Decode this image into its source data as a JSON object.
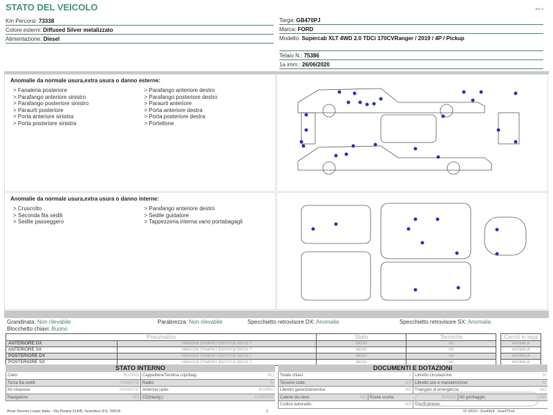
{
  "title": "STATO DEL VEICOLO",
  "rev": "Rev. A",
  "left_info": [
    {
      "label": "Km Percorsi: ",
      "value": "73338"
    },
    {
      "label": "Colore esterni: ",
      "value": "Diffused Silver metalizzato"
    },
    {
      "label": "Alimentazione: ",
      "value": "Diesel"
    }
  ],
  "right_info": [
    {
      "label": "Targa: ",
      "value": "GB470PJ"
    },
    {
      "label": "Marca: ",
      "value": "FORD"
    },
    {
      "label": "Modello: ",
      "value": "Supercab XLT 4WD 2.0 TDCi 170CVRanger / 2019 / 4P / Pickup"
    },
    {
      "label": "Telaio N.: ",
      "value": "75386"
    },
    {
      "label": "1a imm.: ",
      "value": "26/06/2020"
    }
  ],
  "exterior": {
    "title": "Anomalie da normale usura,extra usura o danno esterne:",
    "col1": [
      "> Fanaleria posteriore",
      "> Parafango anteriore sinistro",
      "> Parafango posteriore sinistro",
      "> Paraurti posteriore",
      "> Porta anteriore sinistra",
      "> Porta posteriore sinistra"
    ],
    "col2": [
      "> Parafango anteriore destro",
      "> Parafango posteriore destro",
      "> Paraurti anteriore",
      "> Porta anteriore destra",
      "> Porta posteriore destra",
      "> Portellone"
    ]
  },
  "interior": {
    "title": "Anomalie da normale usura,extra usura o danno interne:",
    "col1": [
      "> Cruscotto",
      "> Seconda fila sedili",
      "> Sedile passeggero"
    ],
    "col2": [
      "> Parafango anteriore destro",
      "> Sedile guidatore",
      "> Tappezzeria interna vano portabagagli"
    ]
  },
  "status": [
    {
      "label": "Grandinata: ",
      "value": "Non rilevabile"
    },
    {
      "label": "Parabrezza: ",
      "value": "Non rilevabile"
    },
    {
      "label": "Specchietto retrovisore DX: ",
      "value": "Anomalia"
    },
    {
      "label": "Specchietto retrovisore SX: ",
      "value": "Anomalia"
    },
    {
      "label": "Blocchetto chiavi: ",
      "value": "Buono"
    }
  ],
  "tires": {
    "headers": [
      "Pneumatico",
      "Stato",
      "Termiche",
      "Cerchi in lega"
    ],
    "rows": [
      {
        "pos": "ANTERIORE DX",
        "tyre": "HANKOOK DYNAPRO 255/70 R16 000/111 T",
        "stato": "MEDIO",
        "termiche": "NO",
        "cerchi": "ANOMALIA"
      },
      {
        "pos": "ANTERIORE SX",
        "tyre": "HANKOOK DYNAPRO 255/70 R16 000/111 T",
        "stato": "MEDIO",
        "termiche": "NO",
        "cerchi": "ANOMALIA"
      },
      {
        "pos": "POSTERIORE DX",
        "tyre": "HANKOOK DYNAPRO 255/70 R16 000/111 T",
        "stato": "MEDIO",
        "termiche": "NO",
        "cerchi": "ANOMALIA"
      },
      {
        "pos": "POSTERIORE SX",
        "tyre": "HANKOOK DYNAPRO 255/70 R16 000/111 T",
        "stato": "MEDIO",
        "termiche": "NO",
        "cerchi": "ANOMALIA"
      }
    ]
  },
  "stato_interno": {
    "title": "STATO INTERNO",
    "rows": [
      [
        [
          "Cielo:",
          "BUONO"
        ],
        [
          "Cappelliera/Tendina copribag:",
          "NO"
        ]
      ],
      [
        [
          "Terza fila sedili:",
          "ASSENTE"
        ],
        [
          "Radio:",
          "SI"
        ]
      ],
      [
        [
          "Kit vivavoce:",
          "ASSENTE"
        ],
        [
          "Antenna radio:",
          "BUONO"
        ]
      ],
      [
        [
          "Navigatore:",
          "NO"
        ],
        [
          "CD(Navig.):",
          "ASSENTE"
        ]
      ]
    ]
  },
  "documenti": {
    "title": "DOCUMENTI E DOTAZIONI",
    "rows": [
      [
        [
          "Totale chiavi:",
          "2"
        ],
        [
          "Libretto circolazione:",
          "SI"
        ]
      ],
      [
        [
          "Tessere code:",
          "NO"
        ],
        [
          "Libretto uso e manutenzione:",
          "SI"
        ]
      ],
      [
        [
          "Libretto garanzia/service:",
          "NO"
        ],
        [
          "Triangolo di emergenza:",
          "NO"
        ]
      ],
      [
        [
          "Catene da neve:",
          "NO"
        ],
        [
          "Ruota scorta:",
          "BUONA"
        ],
        [
          "Kit gonfiaggio:",
          "NO"
        ]
      ],
      [
        [
          "Codice autoradio:",
          "NO"
        ],
        [
          "Cric/Estintore:",
          ""
        ]
      ]
    ]
  },
  "footer": {
    "company": "Arval Service Lease Italia - Via Pisana 314/B, Scandicci (FI), 50018",
    "page": "1",
    "id": "ID rifISO: 2ea49e8 ; 6ea475cd"
  },
  "watermark": "CarOutlet.eu",
  "colors": {
    "title": "#3f8f7e",
    "dot": "#2b2fb0",
    "bar": "#c8c8c8"
  }
}
